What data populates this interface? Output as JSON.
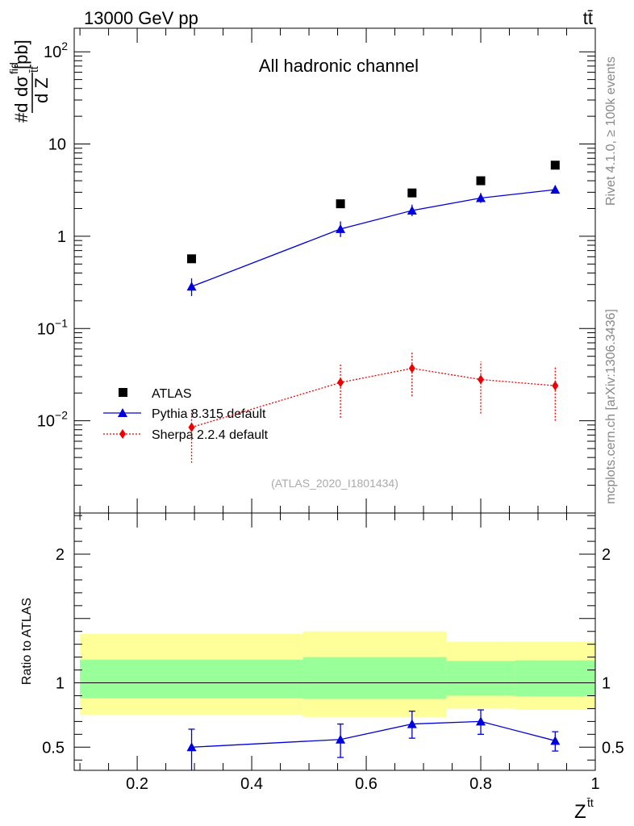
{
  "header": {
    "energy_label": "13000 GeV pp",
    "process_label": "tt̄"
  },
  "side_text": {
    "rivet": "Rivet 4.1.0, ≥ 100k events",
    "mcplots": "mcplots.cern.ch [arXiv:1306.3436]"
  },
  "chart_data": [
    {
      "type": "scatter",
      "title": "All hadronic channel",
      "ylabel": "#dσfid / d Ztt [pb]",
      "ylabel_parts": {
        "prefix": "#d",
        "num": "dσ",
        "num_sup": "fid",
        "den": "d Z",
        "den_sup": "t̄t",
        "unit": "[pb]"
      },
      "yscale": "log",
      "xlim": [
        0.09,
        1.0
      ],
      "ylim": [
        0.001,
        180
      ],
      "yticks": [
        {
          "value": 100,
          "base": "10",
          "exp": "2"
        },
        {
          "value": 10,
          "base": "10",
          "exp": ""
        },
        {
          "value": 1,
          "base": "1",
          "exp": ""
        },
        {
          "value": 0.1,
          "base": "10",
          "exp": "−1"
        },
        {
          "value": 0.01,
          "base": "10",
          "exp": "−2"
        }
      ],
      "watermark": "(ATLAS_2020_I1801434)",
      "legend_position": "lower-left",
      "series": [
        {
          "name": "ATLAS",
          "marker": "square",
          "color": "#000000",
          "line": "none",
          "x": [
            0.295,
            0.555,
            0.68,
            0.8,
            0.93
          ],
          "y": [
            0.57,
            2.25,
            2.95,
            4.0,
            5.9
          ]
        },
        {
          "name": "Pythia 8.315 default",
          "marker": "triangle",
          "color": "#0000dd",
          "line": "solid",
          "x": [
            0.295,
            0.555,
            0.68,
            0.8,
            0.93
          ],
          "y": [
            0.285,
            1.2,
            1.9,
            2.6,
            3.2
          ],
          "yerr_low": [
            0.225,
            0.98,
            1.65,
            2.3,
            2.9
          ],
          "yerr_high": [
            0.35,
            1.45,
            2.2,
            2.95,
            3.55
          ]
        },
        {
          "name": "Sherpa 2.2.4 default",
          "marker": "diamond",
          "color": "#ee0000",
          "line": "dotted",
          "x": [
            0.295,
            0.555,
            0.68,
            0.8,
            0.93
          ],
          "y": [
            0.0085,
            0.026,
            0.037,
            0.028,
            0.024
          ],
          "yerr_low": [
            0.0035,
            0.0108,
            0.0185,
            0.012,
            0.01
          ],
          "yerr_high": [
            0.0135,
            0.041,
            0.057,
            0.044,
            0.038
          ]
        }
      ]
    },
    {
      "type": "line",
      "ylabel": "Ratio to ATLAS",
      "xlabel": "Ztt",
      "xlabel_parts": {
        "base": "Z",
        "sup": "t̄t"
      },
      "xlim": [
        0.09,
        1.0
      ],
      "ylim": [
        0.32,
        2.32
      ],
      "xticks": [
        0.2,
        0.4,
        0.6,
        0.8,
        1
      ],
      "xtick_labels": [
        "0.2",
        "0.4",
        "0.6",
        "0.8",
        "1"
      ],
      "yticks": [
        0.5,
        1,
        2
      ],
      "ytick_labels": [
        "0.5",
        "1",
        "2"
      ],
      "bands": [
        {
          "x0": 0.1,
          "x1": 0.49,
          "yellow": [
            0.75,
            1.38
          ],
          "green": [
            0.88,
            1.18
          ]
        },
        {
          "x0": 0.49,
          "x1": 0.74,
          "yellow": [
            0.735,
            1.4
          ],
          "green": [
            0.875,
            1.2
          ]
        },
        {
          "x0": 0.74,
          "x1": 0.86,
          "yellow": [
            0.8,
            1.32
          ],
          "green": [
            0.9,
            1.17
          ]
        },
        {
          "x0": 0.86,
          "x1": 1.0,
          "yellow": [
            0.79,
            1.32
          ],
          "green": [
            0.895,
            1.175
          ]
        }
      ],
      "series": [
        {
          "name": "Pythia 8.315 default",
          "marker": "triangle",
          "color": "#0000dd",
          "x": [
            0.295,
            0.555,
            0.68,
            0.8,
            0.93
          ],
          "y": [
            0.5,
            0.56,
            0.68,
            0.7,
            0.55
          ],
          "yerr_low": [
            0.32,
            0.42,
            0.57,
            0.6,
            0.47
          ],
          "yerr_high": [
            0.64,
            0.68,
            0.78,
            0.79,
            0.62
          ]
        }
      ]
    }
  ]
}
